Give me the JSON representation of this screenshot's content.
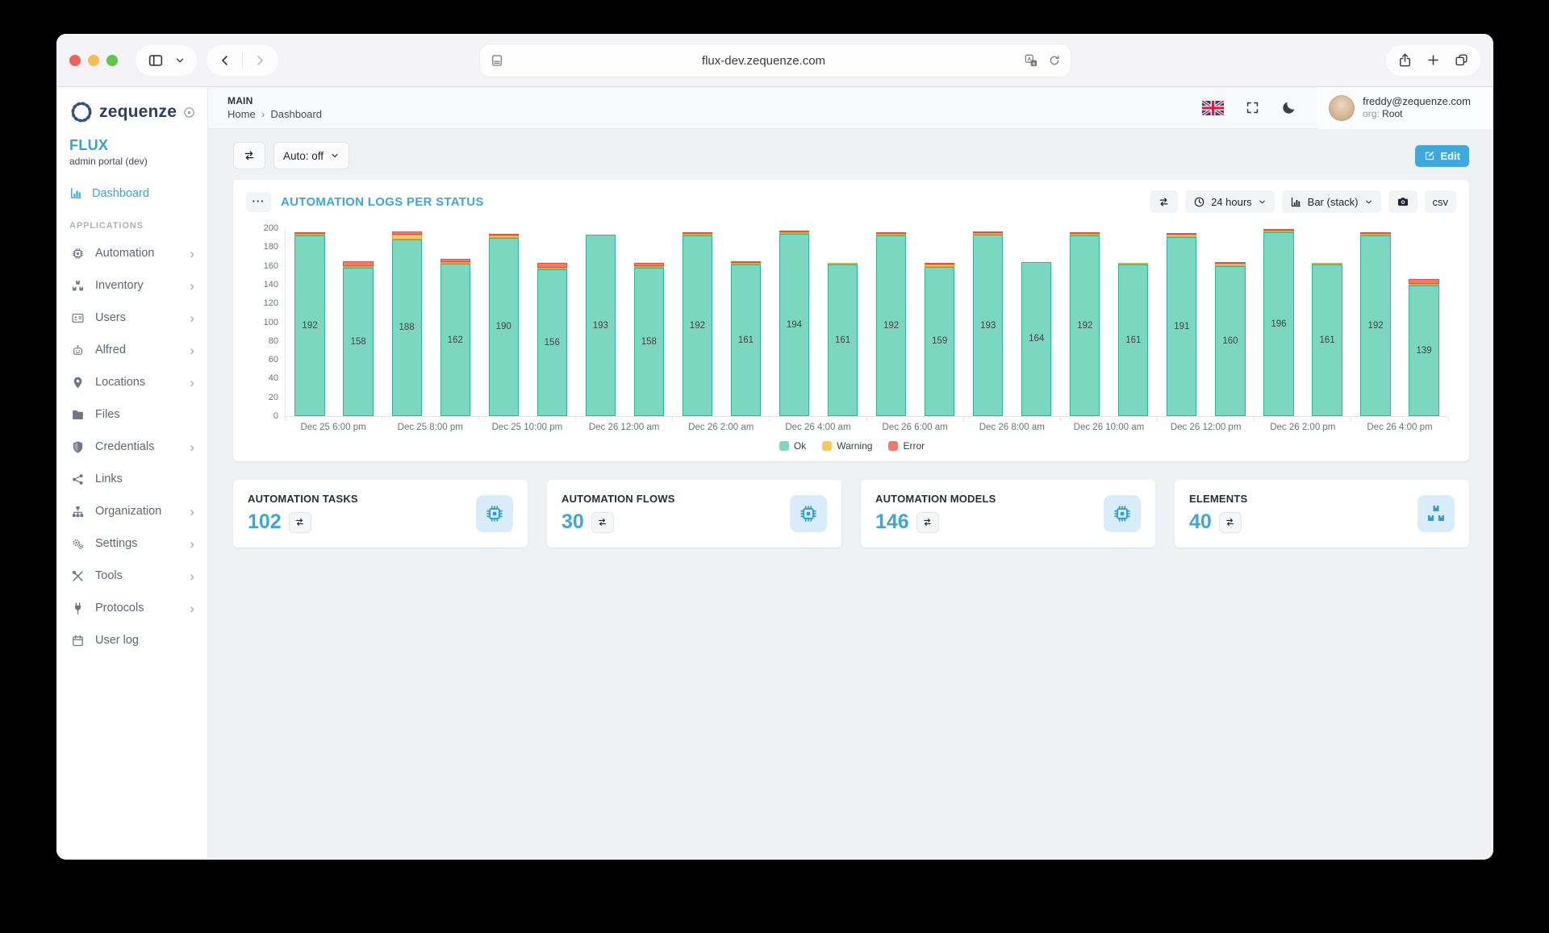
{
  "theme": {
    "accent": "#3aa4dc",
    "title_blue": "#3ba7de",
    "ok_color": "#7cd7c0",
    "warning_color": "#f7c85c",
    "error_color": "#f3796f"
  },
  "browser": {
    "url": "flux-dev.zequenze.com"
  },
  "sidebar": {
    "brand": "zequenze",
    "app_name": "FLUX",
    "app_subtitle": "admin portal (dev)",
    "dashboard_label": "Dashboard",
    "section_label": "APPLICATIONS",
    "items": [
      {
        "label": "Automation",
        "icon": "microchip",
        "chevron": true
      },
      {
        "label": "Inventory",
        "icon": "boxes",
        "chevron": true
      },
      {
        "label": "Users",
        "icon": "id-card",
        "chevron": true
      },
      {
        "label": "Alfred",
        "icon": "robot",
        "chevron": true
      },
      {
        "label": "Locations",
        "icon": "location-pin",
        "chevron": true
      },
      {
        "label": "Files",
        "icon": "folder",
        "chevron": false
      },
      {
        "label": "Credentials",
        "icon": "shield",
        "chevron": true
      },
      {
        "label": "Links",
        "icon": "share-nodes",
        "chevron": false
      },
      {
        "label": "Organization",
        "icon": "sitemap",
        "chevron": true
      },
      {
        "label": "Settings",
        "icon": "gears",
        "chevron": true
      },
      {
        "label": "Tools",
        "icon": "tools",
        "chevron": true
      },
      {
        "label": "Protocols",
        "icon": "plug",
        "chevron": true
      },
      {
        "label": "User log",
        "icon": "calendar",
        "chevron": false
      }
    ]
  },
  "header": {
    "kicker": "MAIN",
    "breadcrumb": [
      "Home",
      "Dashboard"
    ],
    "user_email": "freddy@zequenze.com",
    "org_label": "org:",
    "org_value": "Root"
  },
  "toolbar": {
    "auto_label": "Auto: off",
    "edit_label": "Edit"
  },
  "chart_card": {
    "title": "AUTOMATION LOGS PER STATUS",
    "range_label": "24 hours",
    "type_label": "Bar (stack)",
    "csv_label": "csv"
  },
  "chart_data": {
    "type": "bar",
    "stacked": true,
    "title": "AUTOMATION LOGS PER STATUS",
    "ylim": [
      0,
      200
    ],
    "yticks": [
      0,
      20,
      40,
      60,
      80,
      100,
      120,
      140,
      160,
      180,
      200
    ],
    "grid": false,
    "legend_position": "bottom",
    "categories": [
      "Dec 25 6:00 pm",
      "Dec 25 8:00 pm",
      "Dec 25 10:00 pm",
      "Dec 26 12:00 am",
      "Dec 26 2:00 am",
      "Dec 26 4:00 am",
      "Dec 26 6:00 am",
      "Dec 26 8:00 am",
      "Dec 26 10:00 am",
      "Dec 26 12:00 pm",
      "Dec 26 2:00 pm",
      "Dec 26 4:00 pm"
    ],
    "bars_per_category": 2,
    "series": [
      {
        "name": "Ok",
        "color": "#7cd7c0",
        "border": "#2fb792",
        "values": [
          192,
          158,
          188,
          162,
          190,
          156,
          193,
          158,
          192,
          161,
          194,
          161,
          192,
          159,
          193,
          164,
          192,
          161,
          191,
          160,
          196,
          161,
          192,
          139
        ]
      },
      {
        "name": "Warning",
        "color": "#f7c85c",
        "border": "#e0a63c",
        "values": [
          2,
          2,
          5,
          1,
          2,
          1,
          0,
          2,
          1,
          1,
          1,
          1,
          1,
          2,
          1,
          0,
          1,
          1,
          2,
          2,
          1,
          1,
          1,
          2
        ]
      },
      {
        "name": "Error",
        "color": "#f3796f",
        "border": "#d95348",
        "values": [
          2,
          5,
          4,
          4,
          2,
          5,
          0,
          3,
          1,
          1,
          1,
          0,
          1,
          1,
          1,
          0,
          1,
          0,
          1,
          2,
          1,
          0,
          2,
          5
        ]
      }
    ]
  },
  "stat_cards": [
    {
      "title": "AUTOMATION TASKS",
      "value": "102",
      "icon": "microchip"
    },
    {
      "title": "AUTOMATION FLOWS",
      "value": "30",
      "icon": "microchip"
    },
    {
      "title": "AUTOMATION MODELS",
      "value": "146",
      "icon": "microchip"
    },
    {
      "title": "ELEMENTS",
      "value": "40",
      "icon": "boxes"
    }
  ]
}
